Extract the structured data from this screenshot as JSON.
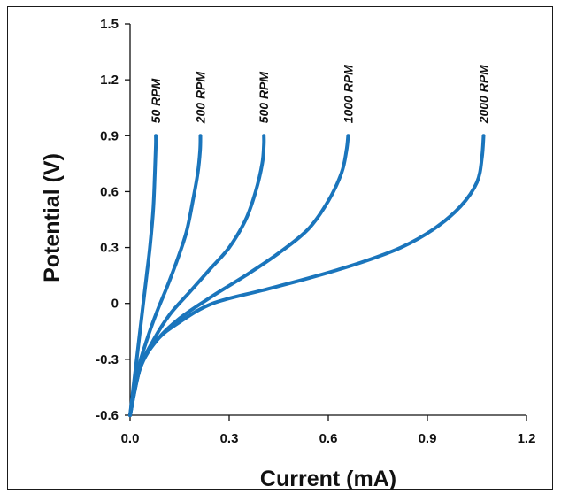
{
  "chart_data": {
    "type": "line",
    "xlabel": "Current (mA)",
    "ylabel": "Potential (V)",
    "xlim": [
      0.0,
      1.2
    ],
    "ylim": [
      -0.6,
      1.5
    ],
    "xticks": [
      "0.0",
      "0.3",
      "0.6",
      "0.9",
      "1.2"
    ],
    "yticks": [
      "1.5",
      "1.2",
      "0.9",
      "0.6",
      "0.3",
      "0",
      "-0.3",
      "-0.6"
    ],
    "grid": false,
    "line_color": "#1a75bc",
    "series": [
      {
        "name": "50 RPM",
        "points": [
          [
            0.0,
            -0.6
          ],
          [
            0.01,
            -0.45
          ],
          [
            0.02,
            -0.3
          ],
          [
            0.03,
            -0.15
          ],
          [
            0.04,
            0.0
          ],
          [
            0.05,
            0.15
          ],
          [
            0.06,
            0.3
          ],
          [
            0.07,
            0.5
          ],
          [
            0.075,
            0.7
          ],
          [
            0.078,
            0.85
          ],
          [
            0.078,
            0.9
          ]
        ]
      },
      {
        "name": "200 RPM",
        "points": [
          [
            0.0,
            -0.6
          ],
          [
            0.02,
            -0.38
          ],
          [
            0.05,
            -0.2
          ],
          [
            0.08,
            -0.05
          ],
          [
            0.11,
            0.08
          ],
          [
            0.14,
            0.22
          ],
          [
            0.17,
            0.38
          ],
          [
            0.19,
            0.55
          ],
          [
            0.205,
            0.7
          ],
          [
            0.212,
            0.82
          ],
          [
            0.213,
            0.9
          ]
        ]
      },
      {
        "name": "500 RPM",
        "points": [
          [
            0.0,
            -0.6
          ],
          [
            0.03,
            -0.35
          ],
          [
            0.07,
            -0.2
          ],
          [
            0.12,
            -0.06
          ],
          [
            0.18,
            0.06
          ],
          [
            0.24,
            0.18
          ],
          [
            0.3,
            0.3
          ],
          [
            0.35,
            0.45
          ],
          [
            0.38,
            0.6
          ],
          [
            0.4,
            0.75
          ],
          [
            0.405,
            0.85
          ],
          [
            0.405,
            0.9
          ]
        ]
      },
      {
        "name": "1000 RPM",
        "points": [
          [
            0.0,
            -0.6
          ],
          [
            0.03,
            -0.35
          ],
          [
            0.08,
            -0.2
          ],
          [
            0.15,
            -0.08
          ],
          [
            0.25,
            0.04
          ],
          [
            0.35,
            0.15
          ],
          [
            0.45,
            0.27
          ],
          [
            0.54,
            0.4
          ],
          [
            0.6,
            0.55
          ],
          [
            0.64,
            0.7
          ],
          [
            0.655,
            0.82
          ],
          [
            0.66,
            0.9
          ]
        ]
      },
      {
        "name": "2000 RPM",
        "points": [
          [
            0.0,
            -0.6
          ],
          [
            0.03,
            -0.35
          ],
          [
            0.08,
            -0.2
          ],
          [
            0.15,
            -0.1
          ],
          [
            0.25,
            0.0
          ],
          [
            0.4,
            0.07
          ],
          [
            0.55,
            0.14
          ],
          [
            0.7,
            0.22
          ],
          [
            0.82,
            0.3
          ],
          [
            0.92,
            0.4
          ],
          [
            1.0,
            0.52
          ],
          [
            1.05,
            0.65
          ],
          [
            1.065,
            0.78
          ],
          [
            1.07,
            0.9
          ]
        ]
      }
    ]
  }
}
